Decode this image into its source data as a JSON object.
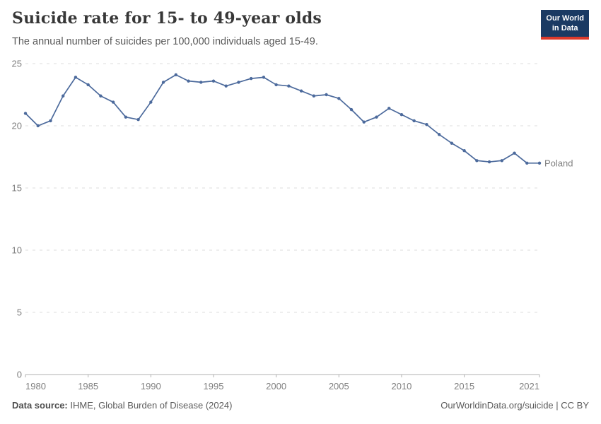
{
  "header": {
    "title": "Suicide rate for 15- to 49-year olds",
    "subtitle": "The annual number of suicides per 100,000 individuals aged 15-49."
  },
  "logo": {
    "line1": "Our World",
    "line2": "in Data"
  },
  "footer": {
    "source_label": "Data source:",
    "source_value": " IHME, Global Burden of Disease (2024)",
    "credit": "OurWorldinData.org/suicide | CC BY"
  },
  "colors": {
    "accent": "#4C6A9C",
    "grid": "#dcdcdc",
    "axis": "#b2b2b2",
    "tick_label": "#7f7f7f",
    "logo_bg": "#1a3a63",
    "logo_bar": "#dc3a2b"
  },
  "chart_data": {
    "type": "line",
    "title": "Suicide rate for 15- to 49-year olds",
    "xlabel": "",
    "ylabel": "Suicides per 100,000 individuals aged 15-49",
    "xlim": [
      1980,
      2021
    ],
    "ylim": [
      0,
      25
    ],
    "xticks": [
      1980,
      1985,
      1990,
      1995,
      2000,
      2005,
      2010,
      2015,
      2021
    ],
    "yticks": [
      0,
      5,
      10,
      15,
      20,
      25
    ],
    "grid": "horizontal-dashed",
    "legend_position": "end-of-line",
    "x": [
      1980,
      1981,
      1982,
      1983,
      1984,
      1985,
      1986,
      1987,
      1988,
      1989,
      1990,
      1991,
      1992,
      1993,
      1994,
      1995,
      1996,
      1997,
      1998,
      1999,
      2000,
      2001,
      2002,
      2003,
      2004,
      2005,
      2006,
      2007,
      2008,
      2009,
      2010,
      2011,
      2012,
      2013,
      2014,
      2015,
      2016,
      2017,
      2018,
      2019,
      2020,
      2021
    ],
    "series": [
      {
        "name": "Poland",
        "color": "#4C6A9C",
        "values": [
          21.0,
          20.0,
          20.4,
          22.4,
          23.9,
          23.3,
          22.4,
          21.9,
          20.7,
          20.5,
          21.9,
          23.5,
          24.1,
          23.6,
          23.5,
          23.6,
          23.2,
          23.5,
          23.8,
          23.9,
          23.3,
          23.2,
          22.8,
          22.4,
          22.5,
          22.2,
          21.3,
          20.3,
          20.7,
          21.4,
          20.9,
          20.4,
          20.1,
          19.3,
          18.6,
          18.0,
          17.2,
          17.1,
          17.2,
          17.8,
          17.0,
          17.0
        ]
      }
    ]
  }
}
